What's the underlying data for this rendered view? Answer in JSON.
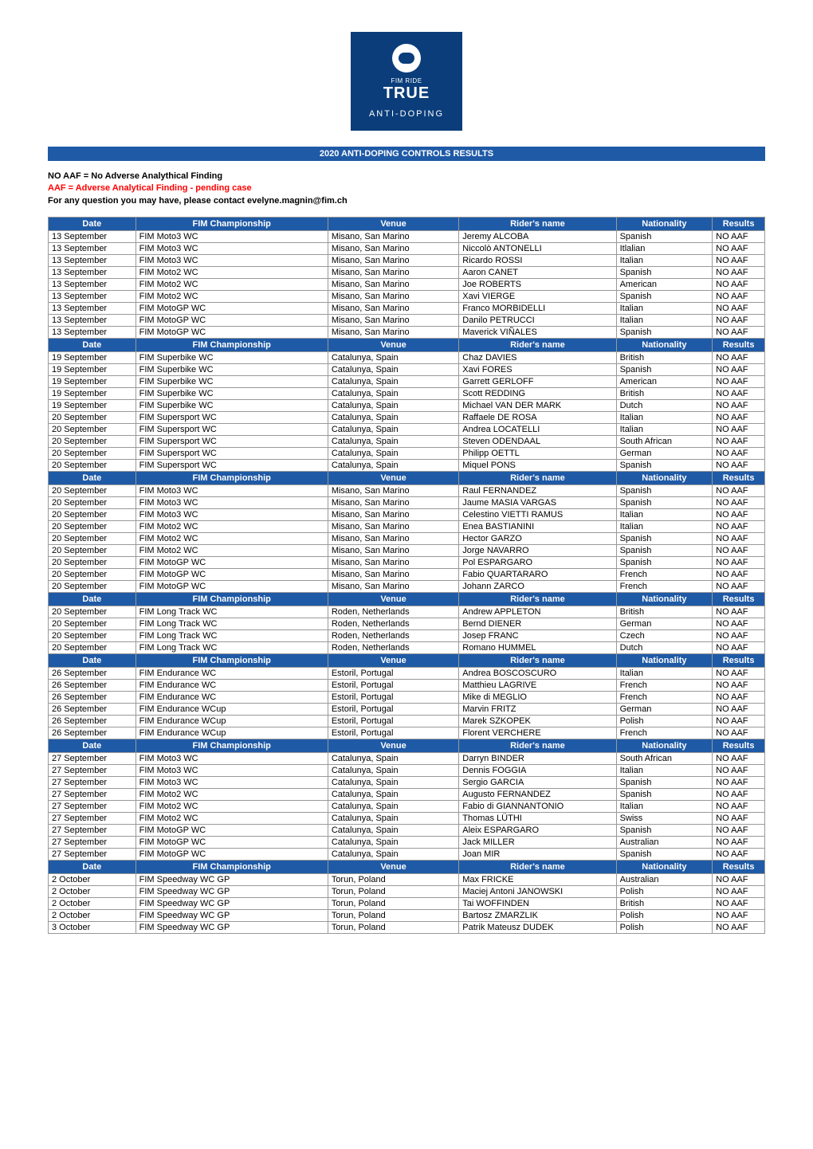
{
  "logo": {
    "line1": "FIM RIDE",
    "line2": "TRUE",
    "line3": "ANTI-DOPING"
  },
  "title": "2020 ANTI-DOPING CONTROLS RESULTS",
  "legend": {
    "noaaf": "NO AAF = No Adverse Analythical Finding",
    "aaf": "AAF = Adverse Analytical Finding - pending case",
    "contact": "For any question you may have, please contact evelyne.magnin@fim.ch"
  },
  "headers": {
    "date": "Date",
    "championship": "FIM Championship",
    "venue": "Venue",
    "rider": "Rider's name",
    "nationality": "Nationality",
    "results": "Results"
  },
  "colors": {
    "header_bg": "#1f5aa6",
    "header_fg": "#ffffff",
    "aaf_color": "#ff0000",
    "border": "#999999"
  },
  "sections": [
    {
      "rows": [
        {
          "date": "13 September",
          "champ": "FIM Moto3 WC",
          "venue": "Misano, San Marino",
          "rider": "Jeremy ALCOBA",
          "nat": "Spanish",
          "res": "NO AAF"
        },
        {
          "date": "13 September",
          "champ": "FIM Moto3 WC",
          "venue": "Misano, San Marino",
          "rider": "Niccolò ANTONELLI",
          "nat": "Itlalian",
          "res": "NO AAF"
        },
        {
          "date": "13 September",
          "champ": "FIM Moto3 WC",
          "venue": "Misano, San Marino",
          "rider": "Ricardo ROSSI",
          "nat": "Italian",
          "res": "NO AAF"
        },
        {
          "date": "13 September",
          "champ": "FIM Moto2 WC",
          "venue": "Misano, San Marino",
          "rider": "Aaron CANET",
          "nat": "Spanish",
          "res": "NO AAF"
        },
        {
          "date": "13 September",
          "champ": "FIM Moto2 WC",
          "venue": "Misano, San Marino",
          "rider": "Joe ROBERTS",
          "nat": "American",
          "res": "NO AAF"
        },
        {
          "date": "13 September",
          "champ": "FIM Moto2 WC",
          "venue": "Misano, San Marino",
          "rider": "Xavi VIERGE",
          "nat": "Spanish",
          "res": "NO AAF"
        },
        {
          "date": "13 September",
          "champ": "FIM MotoGP WC",
          "venue": "Misano, San Marino",
          "rider": "Franco MORBIDELLI",
          "nat": "Italian",
          "res": "NO AAF"
        },
        {
          "date": "13 September",
          "champ": "FIM MotoGP WC",
          "venue": "Misano, San Marino",
          "rider": "Danilo PETRUCCI",
          "nat": "Italian",
          "res": "NO AAF"
        },
        {
          "date": "13 September",
          "champ": "FIM MotoGP WC",
          "venue": "Misano, San Marino",
          "rider": "Maverick VIÑALES",
          "nat": "Spanish",
          "res": "NO AAF"
        }
      ]
    },
    {
      "rows": [
        {
          "date": "19 September",
          "champ": "FIM Superbike WC",
          "venue": "Catalunya, Spain",
          "rider": "Chaz DAVIES",
          "nat": "British",
          "res": "NO AAF"
        },
        {
          "date": "19 September",
          "champ": "FIM Superbike WC",
          "venue": "Catalunya, Spain",
          "rider": "Xavi FORES",
          "nat": "Spanish",
          "res": "NO AAF"
        },
        {
          "date": "19 September",
          "champ": "FIM Superbike WC",
          "venue": "Catalunya, Spain",
          "rider": "Garrett GERLOFF",
          "nat": "American",
          "res": "NO AAF"
        },
        {
          "date": "19 September",
          "champ": "FIM Superbike WC",
          "venue": "Catalunya, Spain",
          "rider": "Scott REDDING",
          "nat": "British",
          "res": "NO AAF"
        },
        {
          "date": "19 September",
          "champ": "FIM Superbike WC",
          "venue": "Catalunya, Spain",
          "rider": "Michael VAN DER MARK",
          "nat": "Dutch",
          "res": "NO AAF"
        },
        {
          "date": "20 September",
          "champ": "FIM Supersport WC",
          "venue": "Catalunya, Spain",
          "rider": "Raffaele DE ROSA",
          "nat": "Italian",
          "res": "NO AAF"
        },
        {
          "date": "20 September",
          "champ": "FIM Supersport WC",
          "venue": "Catalunya, Spain",
          "rider": "Andrea LOCATELLI",
          "nat": "Italian",
          "res": "NO AAF"
        },
        {
          "date": "20 September",
          "champ": "FIM Supersport WC",
          "venue": "Catalunya, Spain",
          "rider": "Steven ODENDAAL",
          "nat": "South African",
          "res": "NO AAF"
        },
        {
          "date": "20 September",
          "champ": "FIM Supersport WC",
          "venue": "Catalunya, Spain",
          "rider": "Philipp OETTL",
          "nat": "German",
          "res": "NO AAF"
        },
        {
          "date": "20 September",
          "champ": "FIM Supersport WC",
          "venue": "Catalunya, Spain",
          "rider": "Miquel PONS",
          "nat": "Spanish",
          "res": "NO AAF"
        }
      ]
    },
    {
      "rows": [
        {
          "date": "20 September",
          "champ": "FIM Moto3 WC",
          "venue": "Misano, San Marino",
          "rider": "Raul FERNANDEZ",
          "nat": "Spanish",
          "res": "NO AAF"
        },
        {
          "date": "20 September",
          "champ": "FIM Moto3 WC",
          "venue": "Misano, San Marino",
          "rider": "Jaume MASIA VARGAS",
          "nat": "Spanish",
          "res": "NO AAF"
        },
        {
          "date": "20 September",
          "champ": "FIM Moto3 WC",
          "venue": "Misano, San Marino",
          "rider": "Celestino VIETTI RAMUS",
          "nat": "Italian",
          "res": "NO AAF"
        },
        {
          "date": "20 September",
          "champ": "FIM Moto2 WC",
          "venue": "Misano, San Marino",
          "rider": "Enea BASTIANINI",
          "nat": "Italian",
          "res": "NO AAF"
        },
        {
          "date": "20 September",
          "champ": "FIM Moto2 WC",
          "venue": "Misano, San Marino",
          "rider": "Hector GARZO",
          "nat": "Spanish",
          "res": "NO AAF"
        },
        {
          "date": "20 September",
          "champ": "FIM Moto2 WC",
          "venue": "Misano, San Marino",
          "rider": "Jorge NAVARRO",
          "nat": "Spanish",
          "res": "NO AAF"
        },
        {
          "date": "20 September",
          "champ": "FIM MotoGP WC",
          "venue": "Misano, San Marino",
          "rider": "Pol ESPARGARO",
          "nat": "Spanish",
          "res": "NO AAF"
        },
        {
          "date": "20 September",
          "champ": "FIM MotoGP WC",
          "venue": "Misano, San Marino",
          "rider": "Fabio QUARTARARO",
          "nat": "French",
          "res": "NO AAF"
        },
        {
          "date": "20 September",
          "champ": "FIM MotoGP WC",
          "venue": "Misano, San Marino",
          "rider": "Johann ZARCO",
          "nat": "French",
          "res": "NO AAF"
        }
      ]
    },
    {
      "rows": [
        {
          "date": "20 September",
          "champ": "FIM Long Track WC",
          "venue": "Roden, Netherlands",
          "rider": "Andrew APPLETON",
          "nat": "British",
          "res": "NO AAF"
        },
        {
          "date": "20 September",
          "champ": "FIM Long Track WC",
          "venue": "Roden, Netherlands",
          "rider": "Bernd DIENER",
          "nat": "German",
          "res": "NO AAF"
        },
        {
          "date": "20 September",
          "champ": "FIM Long Track WC",
          "venue": "Roden, Netherlands",
          "rider": "Josep FRANC",
          "nat": "Czech",
          "res": "NO AAF"
        },
        {
          "date": "20 September",
          "champ": "FIM Long Track WC",
          "venue": "Roden, Netherlands",
          "rider": "Romano HUMMEL",
          "nat": "Dutch",
          "res": "NO AAF"
        }
      ]
    },
    {
      "rows": [
        {
          "date": "26 September",
          "champ": "FIM Endurance WC",
          "venue": "Estoril, Portugal",
          "rider": "Andrea BOSCOSCURO",
          "nat": "Italian",
          "res": "NO AAF"
        },
        {
          "date": "26 September",
          "champ": "FIM Endurance WC",
          "venue": "Estoril, Portugal",
          "rider": "Matthieu LAGRIVE",
          "nat": "French",
          "res": "NO AAF"
        },
        {
          "date": "26 September",
          "champ": "FIM Endurance WC",
          "venue": "Estoril, Portugal",
          "rider": "Mike di MEGLIO",
          "nat": "French",
          "res": "NO AAF"
        },
        {
          "date": "26 September",
          "champ": "FIM Endurance WCup",
          "venue": "Estoril, Portugal",
          "rider": "Marvin FRITZ",
          "nat": "German",
          "res": "NO AAF"
        },
        {
          "date": "26 September",
          "champ": "FIM Endurance WCup",
          "venue": "Estoril, Portugal",
          "rider": "Marek SZKOPEK",
          "nat": "Polish",
          "res": "NO AAF"
        },
        {
          "date": "26 September",
          "champ": "FIM Endurance WCup",
          "venue": "Estoril, Portugal",
          "rider": "Florent VERCHERE",
          "nat": "French",
          "res": "NO AAF"
        }
      ]
    },
    {
      "rows": [
        {
          "date": "27 September",
          "champ": "FIM Moto3 WC",
          "venue": "Catalunya, Spain",
          "rider": "Darryn BINDER",
          "nat": "South African",
          "res": "NO AAF"
        },
        {
          "date": "27 September",
          "champ": "FIM Moto3 WC",
          "venue": "Catalunya, Spain",
          "rider": "Dennis FOGGIA",
          "nat": "Italian",
          "res": "NO AAF"
        },
        {
          "date": "27 September",
          "champ": "FIM Moto3 WC",
          "venue": "Catalunya, Spain",
          "rider": "Sergio GARCIA",
          "nat": "Spanish",
          "res": "NO AAF"
        },
        {
          "date": "27 September",
          "champ": "FIM Moto2 WC",
          "venue": "Catalunya, Spain",
          "rider": "Augusto FERNANDEZ",
          "nat": "Spanish",
          "res": "NO AAF"
        },
        {
          "date": "27 September",
          "champ": "FIM Moto2 WC",
          "venue": "Catalunya, Spain",
          "rider": "Fabio di GIANNANTONIO",
          "nat": "Italian",
          "res": "NO AAF"
        },
        {
          "date": "27 September",
          "champ": "FIM Moto2 WC",
          "venue": "Catalunya, Spain",
          "rider": "Thomas LÜTHI",
          "nat": "Swiss",
          "res": "NO AAF"
        },
        {
          "date": "27 September",
          "champ": "FIM MotoGP WC",
          "venue": "Catalunya, Spain",
          "rider": "Aleix ESPARGARO",
          "nat": "Spanish",
          "res": "NO AAF"
        },
        {
          "date": "27 September",
          "champ": "FIM MotoGP WC",
          "venue": "Catalunya, Spain",
          "rider": "Jack MILLER",
          "nat": "Australian",
          "res": "NO AAF"
        },
        {
          "date": "27 September",
          "champ": "FIM MotoGP WC",
          "venue": "Catalunya, Spain",
          "rider": "Joan MIR",
          "nat": "Spanish",
          "res": "NO AAF"
        }
      ]
    },
    {
      "rows": [
        {
          "date": "2 October",
          "champ": "FIM Speedway WC GP",
          "venue": "Torun, Poland",
          "rider": "Max FRICKE",
          "nat": "Australian",
          "res": "NO AAF"
        },
        {
          "date": "2 October",
          "champ": "FIM Speedway WC GP",
          "venue": "Torun, Poland",
          "rider": "Maciej Antoni JANOWSKI",
          "nat": "Polish",
          "res": "NO AAF"
        },
        {
          "date": "2 October",
          "champ": "FIM Speedway WC GP",
          "venue": "Torun, Poland",
          "rider": "Tai WOFFINDEN",
          "nat": "British",
          "res": "NO AAF"
        },
        {
          "date": "2 October",
          "champ": "FIM Speedway WC GP",
          "venue": "Torun, Poland",
          "rider": "Bartosz ZMARZLIK",
          "nat": "Polish",
          "res": "NO AAF"
        },
        {
          "date": "3 October",
          "champ": "FIM Speedway WC GP",
          "venue": "Torun, Poland",
          "rider": "Patrik Mateusz DUDEK",
          "nat": "Polish",
          "res": "NO AAF"
        }
      ]
    }
  ]
}
